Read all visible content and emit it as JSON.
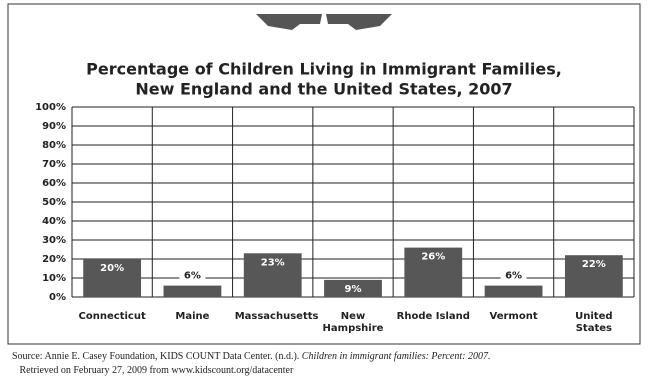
{
  "chart_data": {
    "type": "bar",
    "title": [
      "Percentage of Children Living in Immigrant Families,",
      "New England and the United States, 2007"
    ],
    "categories": [
      "Connecticut",
      "Maine",
      "Massachusetts",
      "New Hampshire",
      "Rhode Island",
      "Vermont",
      "United States"
    ],
    "values": [
      20,
      6,
      23,
      9,
      26,
      6,
      22
    ],
    "value_labels": [
      "20%",
      "6%",
      "23%",
      "9%",
      "26%",
      "6%",
      "22%"
    ],
    "color": "#575757",
    "ylim": [
      0,
      100
    ],
    "yticks": [
      {
        "value": 0,
        "label": "0%"
      },
      {
        "value": 10,
        "label": "10%"
      },
      {
        "value": 20,
        "label": "20%"
      },
      {
        "value": 30,
        "label": "30%"
      },
      {
        "value": 40,
        "label": "40%"
      },
      {
        "value": 50,
        "label": "50%"
      },
      {
        "value": 60,
        "label": "60%"
      },
      {
        "value": 70,
        "label": "70%"
      },
      {
        "value": 80,
        "label": "80%"
      },
      {
        "value": 90,
        "label": "90%"
      },
      {
        "value": 100,
        "label": "100%"
      }
    ],
    "grid": true,
    "source": {
      "before": "Source: Annie E. Casey Foundation, KIDS COUNT Data Center. (n.d.).",
      "italic": "Children in immigrant families: Percent: 2007.",
      "after": "Retrieved on February 27, 2009 from www.kidscount.org/datacenter"
    }
  }
}
